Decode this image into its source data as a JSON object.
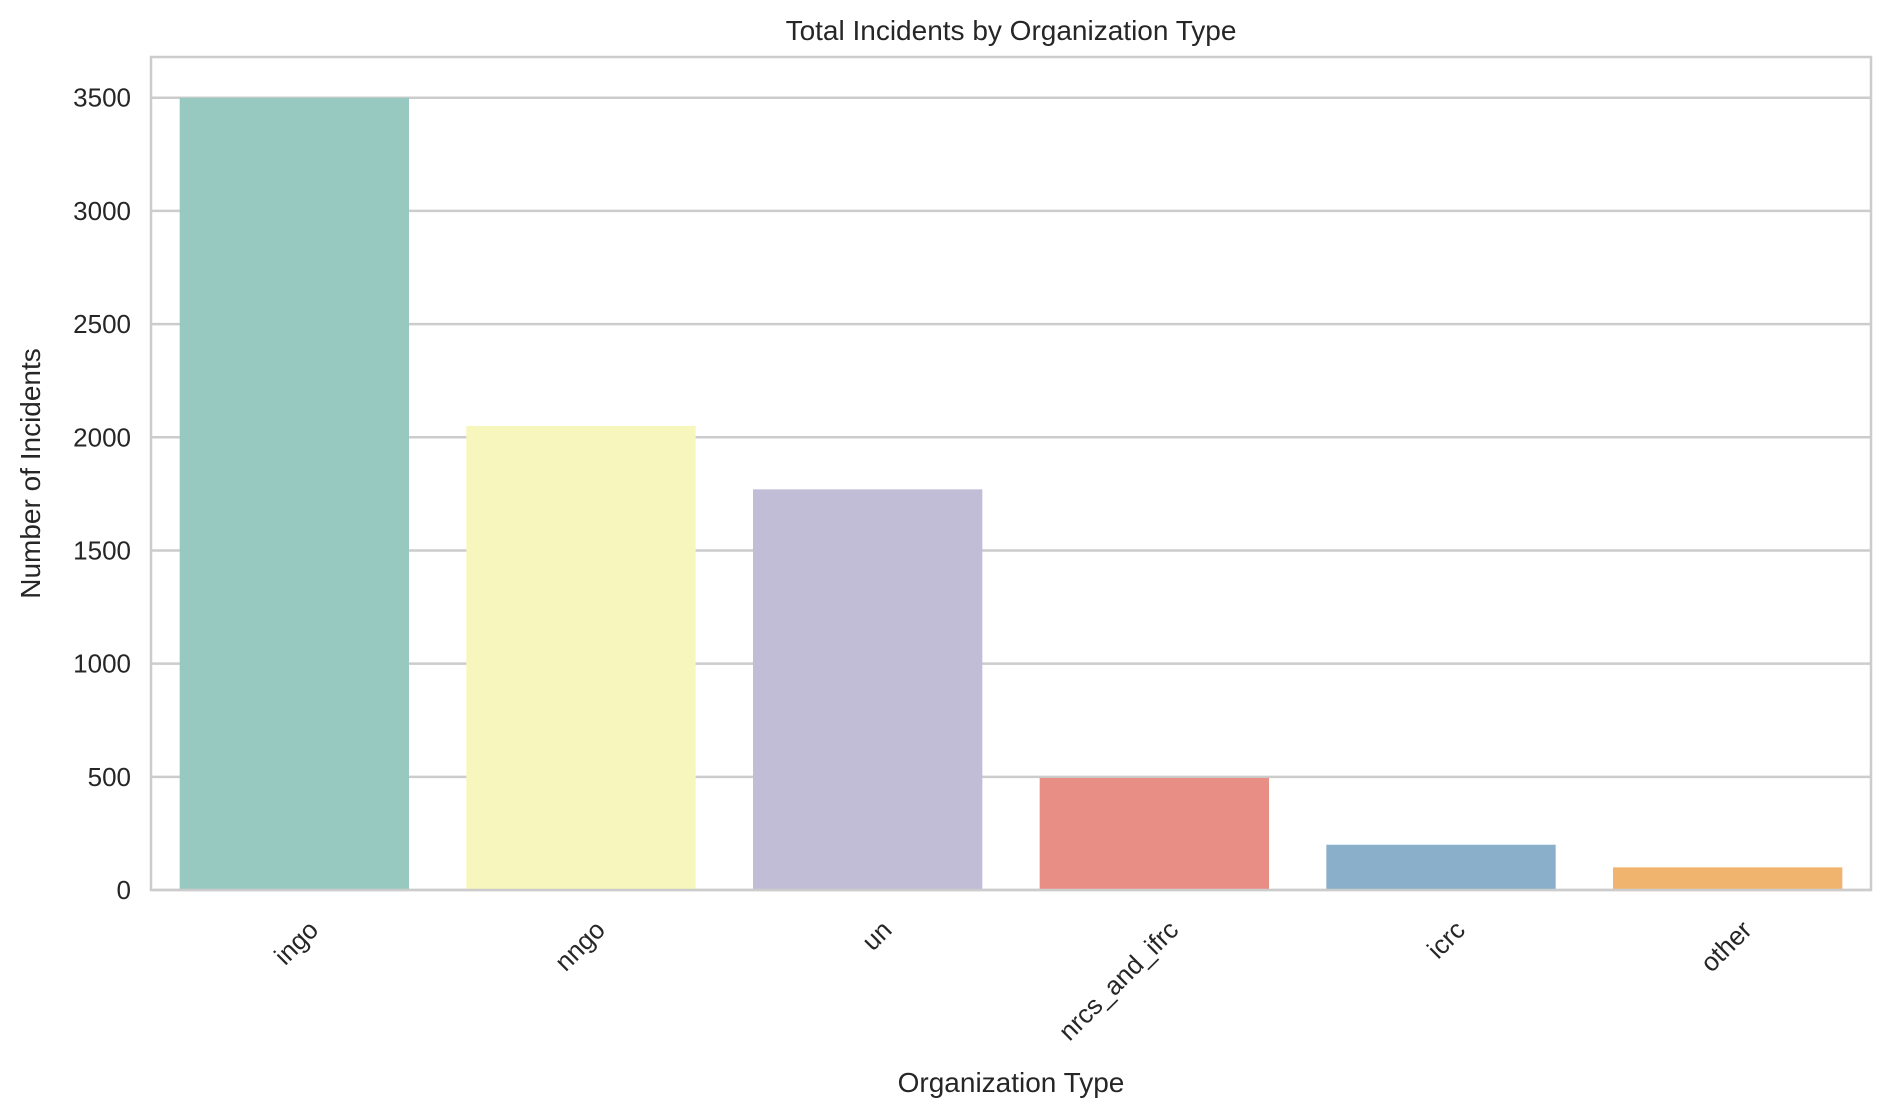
{
  "chart_data": {
    "type": "bar",
    "title": "Total Incidents by Organization Type",
    "xlabel": "Organization Type",
    "ylabel": "Number of Incidents",
    "categories": [
      "ingo",
      "nngo",
      "un",
      "nrcs_and_ifrc",
      "icrc",
      "other"
    ],
    "values": [
      3500,
      2050,
      1770,
      495,
      200,
      100
    ],
    "colors": [
      "#98c9c0",
      "#f7f6bc",
      "#c1bdd6",
      "#e98e84",
      "#8aafca",
      "#f0b46e"
    ],
    "ylim": [
      0,
      3680
    ],
    "yticks": [
      0,
      500,
      1000,
      1500,
      2000,
      2500,
      3000,
      3500
    ],
    "grid": "horizontal",
    "legend": "none"
  }
}
